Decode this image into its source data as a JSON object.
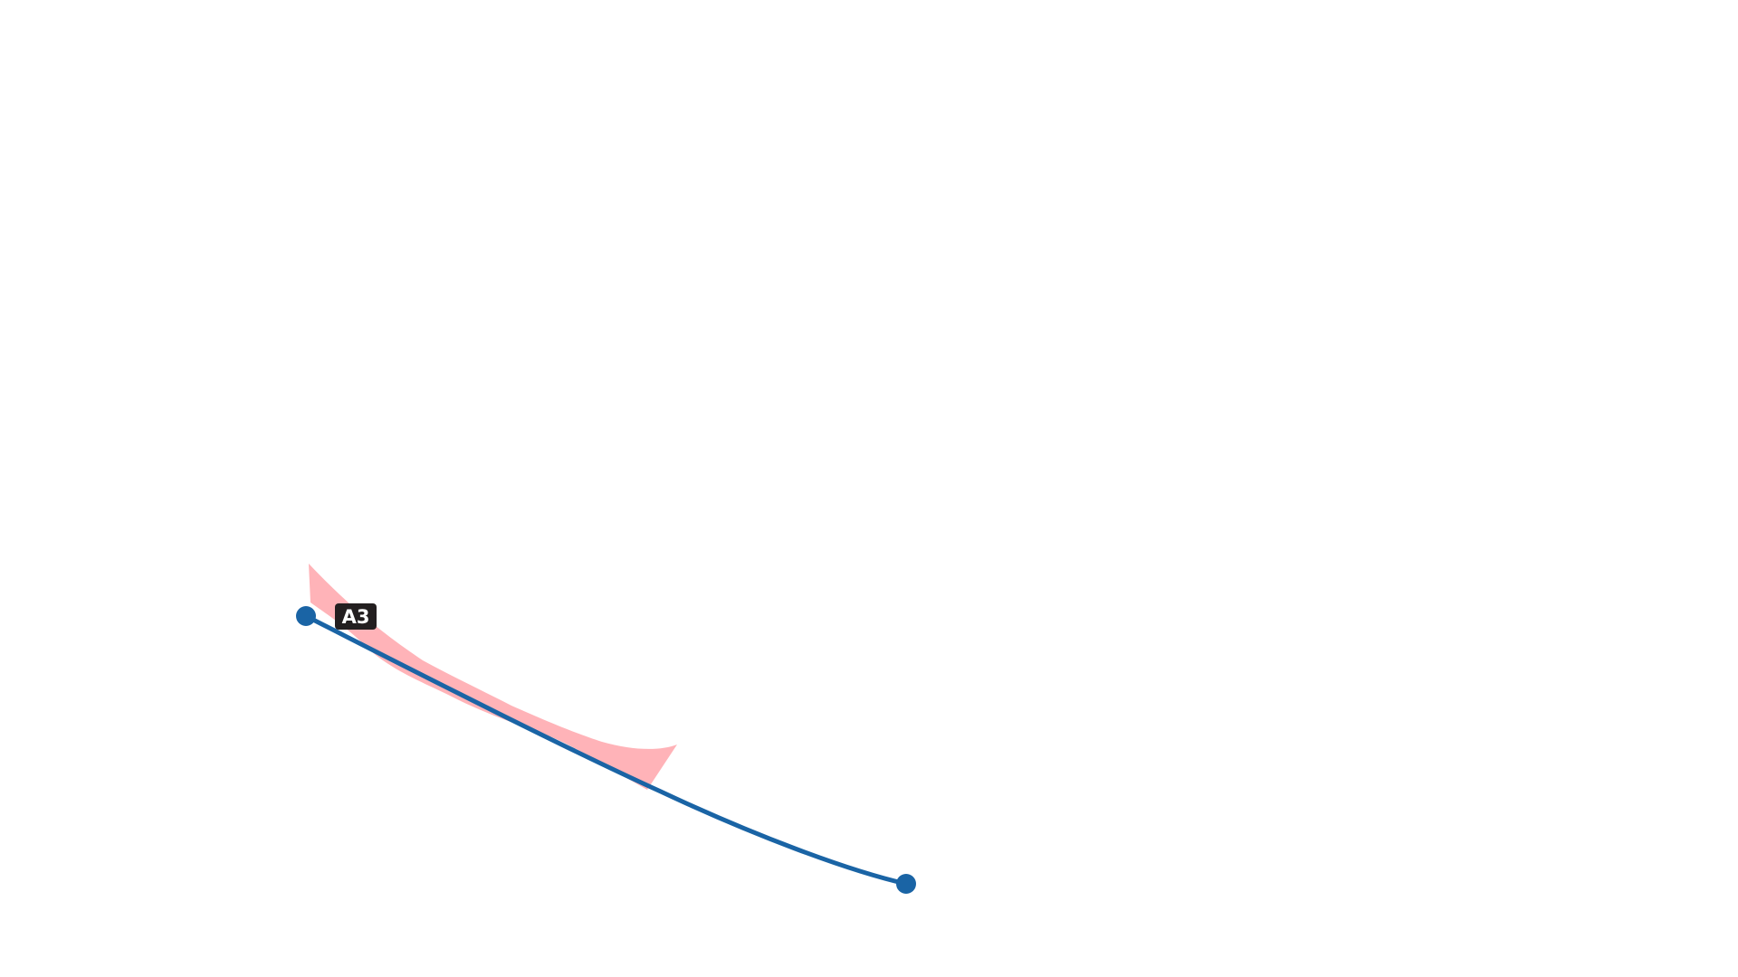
{
  "map": {
    "route": {
      "label": "A3",
      "color": "#1a64a5",
      "label_background": "#231f20",
      "label_text_color": "#ffffff"
    },
    "area": {
      "color": "#ffb3b8"
    },
    "background": "#ffffff"
  }
}
